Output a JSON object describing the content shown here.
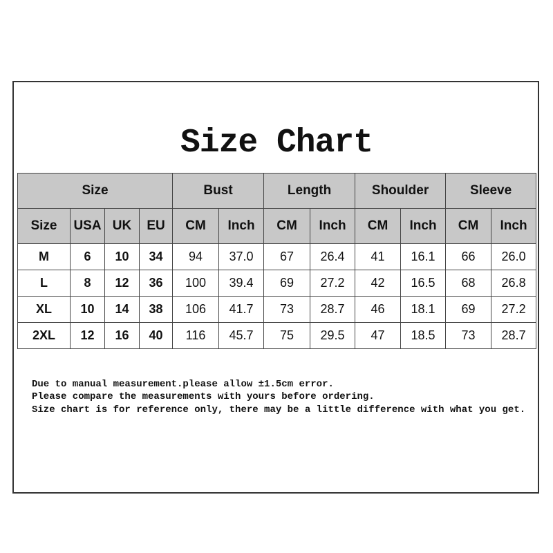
{
  "title": "Size Chart",
  "groups": [
    "Size",
    "Bust",
    "Length",
    "Shoulder",
    "Sleeve"
  ],
  "subheaders": [
    "Size",
    "USA",
    "UK",
    "EU",
    "CM",
    "Inch",
    "CM",
    "Inch",
    "CM",
    "Inch",
    "CM",
    "Inch"
  ],
  "rows": [
    [
      "M",
      "6",
      "10",
      "34",
      "94",
      "37.0",
      "67",
      "26.4",
      "41",
      "16.1",
      "66",
      "26.0"
    ],
    [
      "L",
      "8",
      "12",
      "36",
      "100",
      "39.4",
      "69",
      "27.2",
      "42",
      "16.5",
      "68",
      "26.8"
    ],
    [
      "XL",
      "10",
      "14",
      "38",
      "106",
      "41.7",
      "73",
      "28.7",
      "46",
      "18.1",
      "69",
      "27.2"
    ],
    [
      "2XL",
      "12",
      "16",
      "40",
      "116",
      "45.7",
      "75",
      "29.5",
      "47",
      "18.5",
      "73",
      "28.7"
    ]
  ],
  "notes": [
    "Due to manual measurement.please allow ±1.5cm error.",
    "Please compare the measurements with yours before ordering.",
    "Size chart is for reference only, there may be a little difference with what you get."
  ]
}
